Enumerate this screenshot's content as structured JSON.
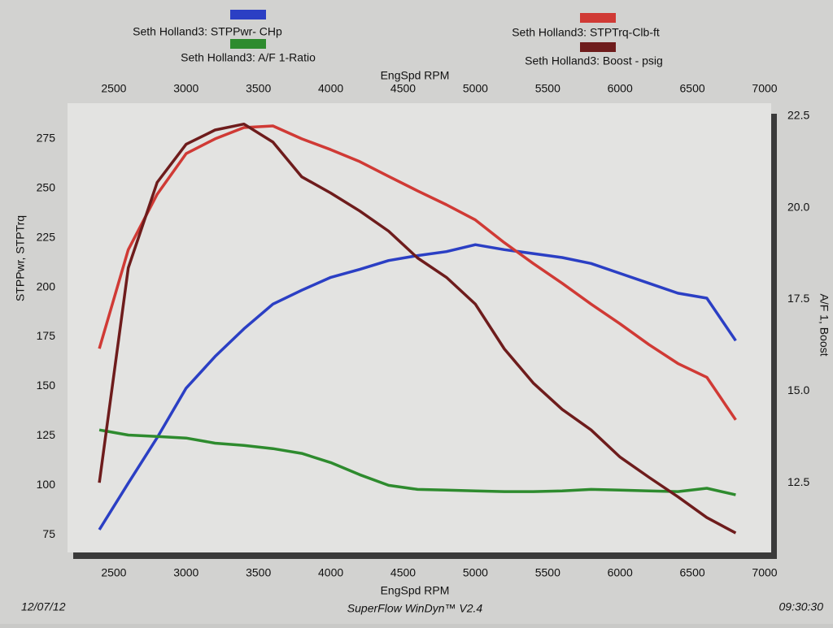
{
  "chart_data": {
    "type": "line",
    "x_label": "EngSpd  RPM",
    "y_label": "STPPwr, STPTrq",
    "y2_label": "A/F 1, Boost",
    "date": "12/07/12",
    "software": "SuperFlow WinDyn™ V2.4",
    "time": "09:30:30",
    "x": [
      2400,
      2600,
      2800,
      3000,
      3200,
      3400,
      3600,
      3800,
      4000,
      4200,
      4400,
      4600,
      4800,
      5000,
      5200,
      5400,
      5600,
      5800,
      6000,
      6200,
      6400,
      6600,
      6800
    ],
    "xlim": [
      2180,
      7045
    ],
    "xticks": [
      2500,
      3000,
      3500,
      4000,
      4500,
      5000,
      5500,
      6000,
      6500,
      7000
    ],
    "ylim": [
      66,
      293
    ],
    "yticks": [
      75,
      100,
      125,
      150,
      175,
      200,
      225,
      250,
      275
    ],
    "y2lim": [
      10.6,
      22.85
    ],
    "y2ticks": [
      {
        "value": 12.5,
        "label": "12.5"
      },
      {
        "value": 15,
        "label": "15.0"
      },
      {
        "value": 17.5,
        "label": "17.5"
      },
      {
        "value": 20,
        "label": "20.0"
      },
      {
        "value": 22.5,
        "label": "22.5"
      }
    ],
    "series": [
      {
        "name": "Seth Holland3: STPPwr- CHp",
        "color": "#2b3fc4",
        "values": [
          77.5,
          101,
          124,
          149,
          165,
          179,
          191.5,
          198.5,
          205,
          209,
          213.5,
          216,
          218,
          221.5,
          219,
          217,
          215,
          212,
          207,
          202,
          197,
          194.5,
          173
        ]
      },
      {
        "name": "Seth Holland3: STPTrq-Clb-ft",
        "color": "#d03a35",
        "values": [
          169,
          219,
          247,
          267.5,
          275,
          280.7,
          281.5,
          275,
          269.5,
          263.5,
          256,
          248.7,
          241.7,
          234,
          222.5,
          212,
          202,
          191.5,
          181.5,
          171,
          161.5,
          154.5,
          133
        ]
      },
      {
        "name": "Seth Holland3:  A/F 1-Ratio",
        "color": "#2e8b2e",
        "axis": "y2",
        "values": [
          13.94,
          13.8,
          13.76,
          13.72,
          13.58,
          13.52,
          13.43,
          13.3,
          13.05,
          12.72,
          12.43,
          12.32,
          12.3,
          12.28,
          12.26,
          12.26,
          12.28,
          12.32,
          12.3,
          12.28,
          12.26,
          12.35,
          12.17
        ]
      },
      {
        "name": "Seth Holland3: Boost - psig",
        "color": "#6e1c1c",
        "axis": "y2",
        "values": [
          12.5,
          18.36,
          20.69,
          21.73,
          22.12,
          22.28,
          21.79,
          20.84,
          20.4,
          19.91,
          19.36,
          18.63,
          18.1,
          17.37,
          16.15,
          15.22,
          14.5,
          13.94,
          13.2,
          12.65,
          12.12,
          11.55,
          11.13
        ]
      }
    ]
  }
}
